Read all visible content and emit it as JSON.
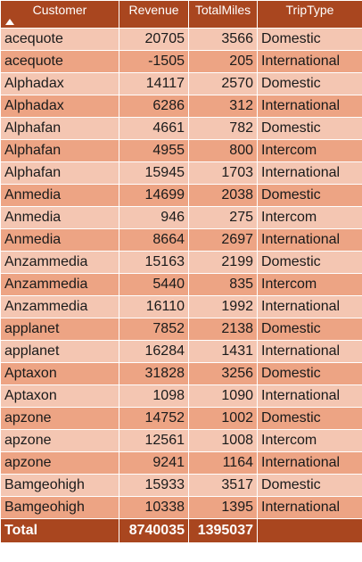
{
  "table": {
    "columns": [
      {
        "key": "customer",
        "label": "Customer",
        "sort": "ascending"
      },
      {
        "key": "revenue",
        "label": "Revenue"
      },
      {
        "key": "total_miles",
        "label": "TotalMiles"
      },
      {
        "key": "trip_type",
        "label": "TripType"
      }
    ],
    "rows": [
      {
        "customer": "acequote",
        "revenue": "20705",
        "total_miles": "3566",
        "trip_type": "Domestic"
      },
      {
        "customer": "acequote",
        "revenue": "-1505",
        "total_miles": "205",
        "trip_type": "International"
      },
      {
        "customer": "Alphadax",
        "revenue": "14117",
        "total_miles": "2570",
        "trip_type": "Domestic"
      },
      {
        "customer": "Alphadax",
        "revenue": "6286",
        "total_miles": "312",
        "trip_type": "International"
      },
      {
        "customer": "Alphafan",
        "revenue": "4661",
        "total_miles": "782",
        "trip_type": "Domestic"
      },
      {
        "customer": "Alphafan",
        "revenue": "4955",
        "total_miles": "800",
        "trip_type": "Intercom"
      },
      {
        "customer": "Alphafan",
        "revenue": "15945",
        "total_miles": "1703",
        "trip_type": "International"
      },
      {
        "customer": "Anmedia",
        "revenue": "14699",
        "total_miles": "2038",
        "trip_type": "Domestic"
      },
      {
        "customer": "Anmedia",
        "revenue": "946",
        "total_miles": "275",
        "trip_type": "Intercom"
      },
      {
        "customer": "Anmedia",
        "revenue": "8664",
        "total_miles": "2697",
        "trip_type": "International"
      },
      {
        "customer": "Anzammedia",
        "revenue": "15163",
        "total_miles": "2199",
        "trip_type": "Domestic"
      },
      {
        "customer": "Anzammedia",
        "revenue": "5440",
        "total_miles": "835",
        "trip_type": "Intercom"
      },
      {
        "customer": "Anzammedia",
        "revenue": "16110",
        "total_miles": "1992",
        "trip_type": "International"
      },
      {
        "customer": "applanet",
        "revenue": "7852",
        "total_miles": "2138",
        "trip_type": "Domestic"
      },
      {
        "customer": "applanet",
        "revenue": "16284",
        "total_miles": "1431",
        "trip_type": "International"
      },
      {
        "customer": "Aptaxon",
        "revenue": "31828",
        "total_miles": "3256",
        "trip_type": "Domestic"
      },
      {
        "customer": "Aptaxon",
        "revenue": "1098",
        "total_miles": "1090",
        "trip_type": "International"
      },
      {
        "customer": "apzone",
        "revenue": "14752",
        "total_miles": "1002",
        "trip_type": "Domestic"
      },
      {
        "customer": "apzone",
        "revenue": "12561",
        "total_miles": "1008",
        "trip_type": "Intercom"
      },
      {
        "customer": "apzone",
        "revenue": "9241",
        "total_miles": "1164",
        "trip_type": "International"
      },
      {
        "customer": "Bamgeohigh",
        "revenue": "15933",
        "total_miles": "3517",
        "trip_type": "Domestic"
      },
      {
        "customer": "Bamgeohigh",
        "revenue": "10338",
        "total_miles": "1395",
        "trip_type": "International"
      }
    ],
    "total": {
      "label": "Total",
      "revenue": "8740035",
      "total_miles": "1395037",
      "trip_type": ""
    }
  },
  "colors": {
    "header_bg": "#a9461f",
    "row_light": "#f4c6b2",
    "row_dark": "#eda484",
    "header_text": "#ffffff"
  },
  "icons": {
    "sort_indicator": "sort-ascending-icon"
  }
}
